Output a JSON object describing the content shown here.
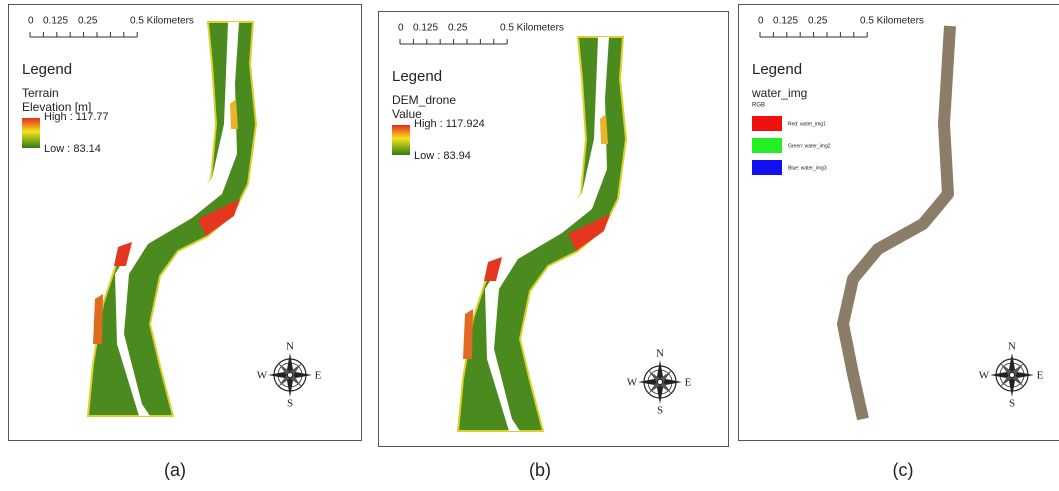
{
  "panels": [
    {
      "caption": "(a)",
      "scale_labels": [
        "0",
        "0.125",
        "0.25",
        "0.5 Kilometers"
      ],
      "legend": {
        "title": "Legend",
        "layer": "Terrain",
        "field": "Elevation [m]",
        "high": "High : 117.77",
        "low": "Low : 83.14"
      },
      "compass": {
        "n": "N",
        "e": "E",
        "s": "S",
        "w": "W"
      }
    },
    {
      "caption": "(b)",
      "scale_labels": [
        "0",
        "0.125",
        "0.25",
        "0.5 Kilometers"
      ],
      "legend": {
        "title": "Legend",
        "layer": "DEM_drone",
        "field": "Value",
        "high": "High : 117.924",
        "low": "Low : 83.94"
      },
      "compass": {
        "n": "N",
        "e": "E",
        "s": "S",
        "w": "W"
      }
    },
    {
      "caption": "(c)",
      "scale_labels": [
        "0",
        "0.125",
        "0.25",
        "0.5 Kilometers"
      ],
      "legend": {
        "title": "Legend",
        "layer": "water_img",
        "field": "RGB",
        "bands": [
          "Red: water_img1",
          "Green: water_img2",
          "Blue: water_img3"
        ]
      },
      "compass": {
        "n": "N",
        "e": "E",
        "s": "S",
        "w": "W"
      }
    }
  ]
}
